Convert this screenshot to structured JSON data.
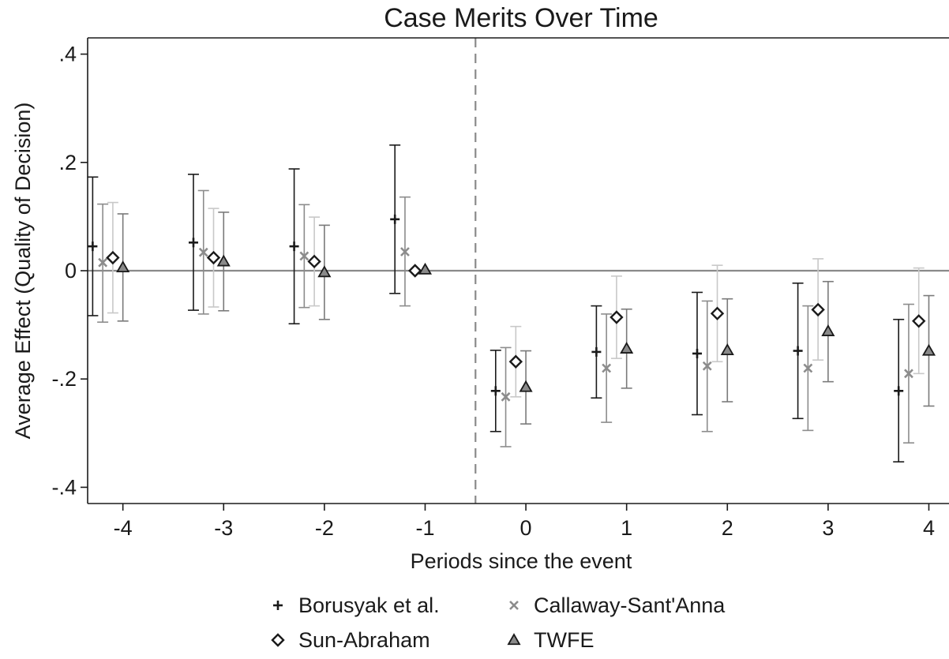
{
  "chart_data": {
    "type": "scatter",
    "title": "Case Merits Over Time",
    "xlabel": "Periods since the event",
    "ylabel": "Average Effect (Quality of Decision)",
    "xlim": [
      -4.35,
      4.2
    ],
    "ylim": [
      -0.43,
      0.43
    ],
    "x_ticks": [
      -4,
      -3,
      -2,
      -1,
      0,
      1,
      2,
      3,
      4
    ],
    "x_tick_labels": [
      "-4",
      "-3",
      "-2",
      "-1",
      "0",
      "1",
      "2",
      "3",
      "4"
    ],
    "y_ticks": [
      0.4,
      0.2,
      0,
      -0.2,
      -0.4
    ],
    "y_tick_labels": [
      ".4",
      ".2",
      "0",
      "-.2",
      "-.4"
    ],
    "reference_lines": {
      "horizontal_y": 0,
      "vertical_x": -0.5
    },
    "grid": false,
    "legend_position": "bottom",
    "series": [
      {
        "name": "Borusyak et al.",
        "marker": "plus",
        "color": "#1a1a1a",
        "points": [
          {
            "x": -4.3,
            "y": 0.045,
            "lo": -0.083,
            "hi": 0.173
          },
          {
            "x": -3.3,
            "y": 0.052,
            "lo": -0.073,
            "hi": 0.178
          },
          {
            "x": -2.3,
            "y": 0.045,
            "lo": -0.098,
            "hi": 0.188
          },
          {
            "x": -1.3,
            "y": 0.095,
            "lo": -0.042,
            "hi": 0.232
          },
          {
            "x": -0.3,
            "y": -0.222,
            "lo": -0.297,
            "hi": -0.147
          },
          {
            "x": 0.7,
            "y": -0.15,
            "lo": -0.235,
            "hi": -0.065
          },
          {
            "x": 1.7,
            "y": -0.153,
            "lo": -0.266,
            "hi": -0.04
          },
          {
            "x": 2.7,
            "y": -0.148,
            "lo": -0.273,
            "hi": -0.023
          },
          {
            "x": 3.7,
            "y": -0.222,
            "lo": -0.353,
            "hi": -0.09
          }
        ]
      },
      {
        "name": "Callaway-Sant'Anna",
        "marker": "x",
        "color": "#8c8c8c",
        "points": [
          {
            "x": -4.2,
            "y": 0.015,
            "lo": -0.095,
            "hi": 0.123
          },
          {
            "x": -3.2,
            "y": 0.034,
            "lo": -0.08,
            "hi": 0.148
          },
          {
            "x": -2.2,
            "y": 0.027,
            "lo": -0.068,
            "hi": 0.122
          },
          {
            "x": -1.2,
            "y": 0.035,
            "lo": -0.065,
            "hi": 0.136
          },
          {
            "x": -0.2,
            "y": -0.233,
            "lo": -0.325,
            "hi": -0.142
          },
          {
            "x": 0.8,
            "y": -0.18,
            "lo": -0.28,
            "hi": -0.08
          },
          {
            "x": 1.8,
            "y": -0.176,
            "lo": -0.297,
            "hi": -0.056
          },
          {
            "x": 2.8,
            "y": -0.18,
            "lo": -0.295,
            "hi": -0.065
          },
          {
            "x": 3.8,
            "y": -0.19,
            "lo": -0.318,
            "hi": -0.062
          }
        ]
      },
      {
        "name": "Sun-Abraham",
        "marker": "diamond",
        "color": "#c8c8c8",
        "points": [
          {
            "x": -4.1,
            "y": 0.024,
            "lo": -0.078,
            "hi": 0.126
          },
          {
            "x": -3.1,
            "y": 0.024,
            "lo": -0.067,
            "hi": 0.115
          },
          {
            "x": -2.1,
            "y": 0.017,
            "lo": -0.065,
            "hi": 0.099
          },
          {
            "x": -1.1,
            "y": 0.0,
            "lo": 0.0,
            "hi": 0.0
          },
          {
            "x": -0.1,
            "y": -0.168,
            "lo": -0.233,
            "hi": -0.103
          },
          {
            "x": 0.9,
            "y": -0.086,
            "lo": -0.162,
            "hi": -0.01
          },
          {
            "x": 1.9,
            "y": -0.079,
            "lo": -0.168,
            "hi": 0.01
          },
          {
            "x": 2.9,
            "y": -0.072,
            "lo": -0.165,
            "hi": 0.022
          },
          {
            "x": 3.9,
            "y": -0.093,
            "lo": -0.19,
            "hi": 0.005
          }
        ]
      },
      {
        "name": "TWFE",
        "marker": "triangle",
        "color": "#7a7a7a",
        "points": [
          {
            "x": -4.0,
            "y": 0.006,
            "lo": -0.093,
            "hi": 0.105
          },
          {
            "x": -3.0,
            "y": 0.017,
            "lo": -0.074,
            "hi": 0.108
          },
          {
            "x": -2.0,
            "y": -0.003,
            "lo": -0.09,
            "hi": 0.084
          },
          {
            "x": -1.0,
            "y": 0.002,
            "lo": 0.002,
            "hi": 0.002
          },
          {
            "x": 0.0,
            "y": -0.215,
            "lo": -0.283,
            "hi": -0.148
          },
          {
            "x": 1.0,
            "y": -0.144,
            "lo": -0.217,
            "hi": -0.071
          },
          {
            "x": 2.0,
            "y": -0.147,
            "lo": -0.242,
            "hi": -0.052
          },
          {
            "x": 3.0,
            "y": -0.112,
            "lo": -0.205,
            "hi": -0.02
          },
          {
            "x": 4.0,
            "y": -0.148,
            "lo": -0.25,
            "hi": -0.046
          }
        ]
      }
    ]
  }
}
